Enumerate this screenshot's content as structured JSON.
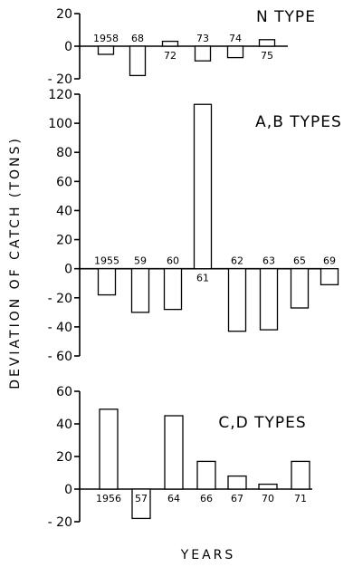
{
  "chart_data": {
    "type": "bar",
    "ylabel": "DEVIATION OF CATCH (TONS)",
    "xlabel": "YEARS",
    "panels": [
      {
        "title": "N TYPE",
        "ylim": [
          -20,
          20
        ],
        "yticks": [
          "20",
          "0",
          "- 20"
        ],
        "categories": [
          "1958",
          "68",
          "72",
          "73",
          "74",
          "75"
        ],
        "values": [
          -5,
          -18,
          3,
          -9,
          -7,
          4
        ]
      },
      {
        "title": "A,B TYPES",
        "ylim": [
          -60,
          120
        ],
        "yticks": [
          "120",
          "100",
          "80",
          "60",
          "40",
          "20",
          "0",
          "- 20",
          "- 40",
          "- 60"
        ],
        "categories": [
          "1955",
          "59",
          "60",
          "61",
          "62",
          "63",
          "65",
          "69"
        ],
        "values": [
          -18,
          -30,
          -28,
          113,
          -43,
          -42,
          -27,
          -11
        ]
      },
      {
        "title": "C,D TYPES",
        "ylim": [
          -20,
          60
        ],
        "yticks": [
          "60",
          "40",
          "20",
          "0",
          "- 20"
        ],
        "categories": [
          "1956",
          "57",
          "64",
          "66",
          "67",
          "70",
          "71"
        ],
        "values": [
          49,
          -18,
          45,
          17,
          8,
          3,
          17
        ]
      }
    ]
  }
}
